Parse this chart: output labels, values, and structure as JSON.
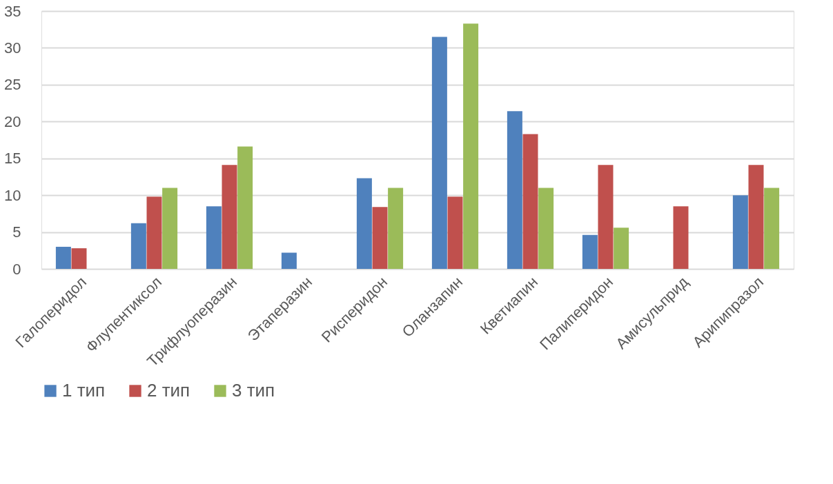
{
  "chart_data": {
    "type": "bar",
    "categories": [
      "Галоперидол",
      "Флупентиксол",
      "Трифлуоперазин",
      "Этаперазин",
      "Рисперидон",
      "Оланзапин",
      "Кветиапин",
      "Палиперидон",
      "Амисульприд",
      "Арипипразол"
    ],
    "series": [
      {
        "name": "1 тип",
        "color": "#4f81bd",
        "values": [
          3.0,
          6.2,
          8.5,
          2.2,
          12.3,
          31.5,
          21.4,
          4.6,
          null,
          10.0
        ]
      },
      {
        "name": "2 тип",
        "color": "#c0504d",
        "values": [
          2.8,
          9.8,
          14.1,
          null,
          8.4,
          9.8,
          18.3,
          14.1,
          8.5,
          14.1
        ]
      },
      {
        "name": "3 тип",
        "color": "#9bbb59",
        "values": [
          null,
          11.0,
          16.6,
          null,
          11.0,
          33.3,
          11.0,
          5.6,
          null,
          11.0
        ]
      }
    ],
    "ylim": [
      0,
      35
    ],
    "yticks": [
      0,
      5,
      10,
      15,
      20,
      25,
      30,
      35
    ],
    "grid": "y",
    "legend": "bottom"
  }
}
